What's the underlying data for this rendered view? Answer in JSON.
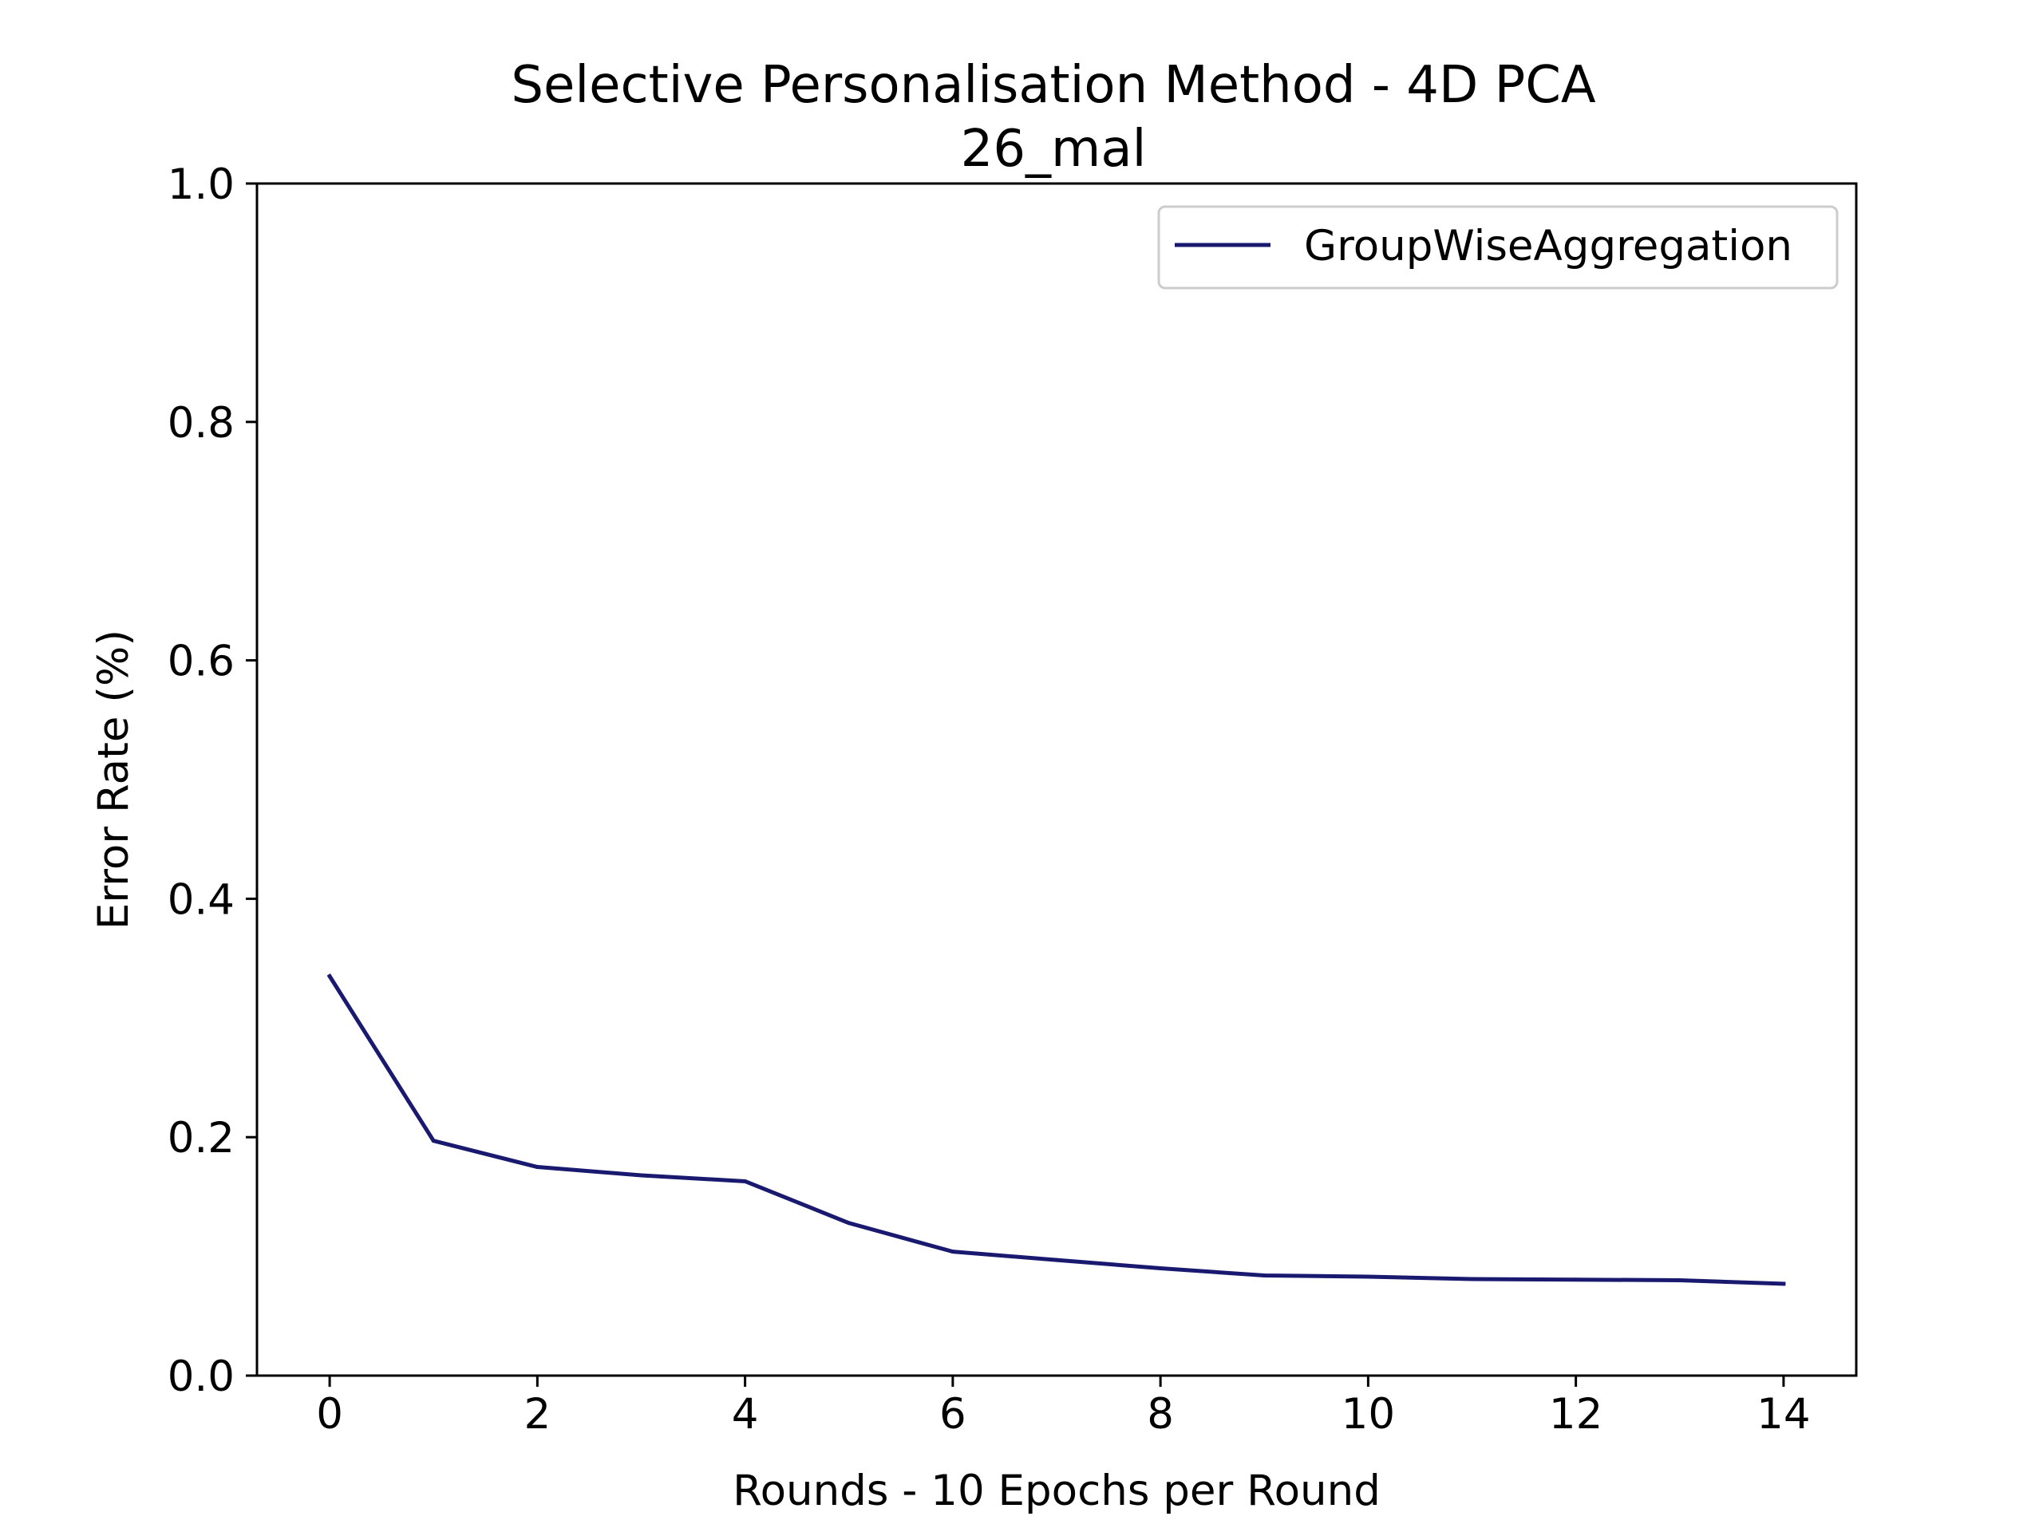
{
  "chart_data": {
    "type": "line",
    "title": "Selective Personalisation Method - 4D PCA",
    "subtitle": "26_mal",
    "xlabel": "Rounds - 10 Epochs per Round",
    "ylabel": "Error Rate (%)",
    "xlim": [
      -0.7,
      14.7
    ],
    "ylim": [
      0.0,
      1.0
    ],
    "x_ticks": [
      0,
      2,
      4,
      6,
      8,
      10,
      12,
      14
    ],
    "x_tick_labels": [
      "0",
      "2",
      "4",
      "6",
      "8",
      "10",
      "12",
      "14"
    ],
    "y_ticks": [
      0.0,
      0.2,
      0.4,
      0.6,
      0.8,
      1.0
    ],
    "y_tick_labels": [
      "0.0",
      "0.2",
      "0.4",
      "0.6",
      "0.8",
      "1.0"
    ],
    "grid": false,
    "legend_position": "upper right",
    "series": [
      {
        "name": "GroupWiseAggregation",
        "color": "#191970",
        "x": [
          0,
          1,
          2,
          3,
          4,
          5,
          6,
          7,
          8,
          9,
          10,
          11,
          12,
          13,
          14
        ],
        "y": [
          0.335,
          0.197,
          0.175,
          0.168,
          0.163,
          0.128,
          0.104,
          0.097,
          0.09,
          0.084,
          0.083,
          0.081,
          0.0805,
          0.08,
          0.077
        ]
      }
    ]
  }
}
